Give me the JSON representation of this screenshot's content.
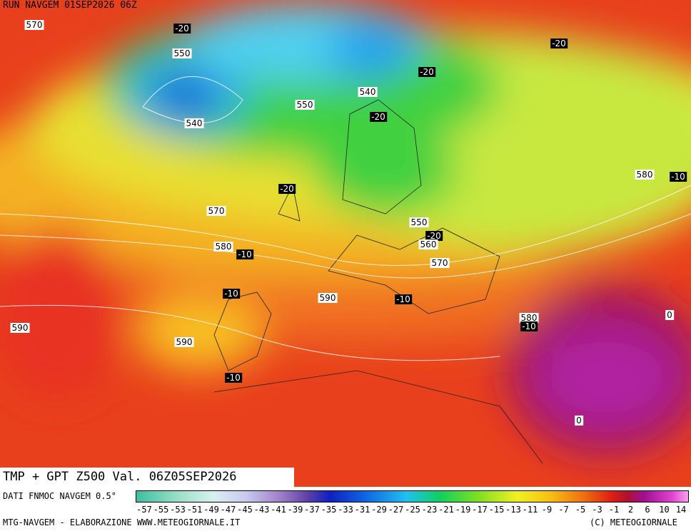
{
  "header": {
    "run": "RUN NAVGEM 01SEP2026 06Z"
  },
  "contour_labels": [
    570,
    -20,
    550,
    -20,
    -20,
    540,
    550,
    -20,
    540,
    580,
    -10,
    -20,
    570,
    550,
    -20,
    560,
    580,
    -10,
    570,
    -10,
    590,
    -10,
    0,
    580,
    -10,
    590,
    590,
    -10,
    0
  ],
  "map_title": "TMP + GPT Z500 Val. 06Z05SEP2026",
  "legend": {
    "source": "DATI FNMOC NAVGEM 0.5°",
    "labels": [
      -57,
      -55,
      -53,
      -51,
      -49,
      -47,
      -45,
      -43,
      -41,
      -39,
      -37,
      -35,
      -33,
      -31,
      -29,
      -27,
      -25,
      -23,
      -21,
      -19,
      -17,
      -15,
      -13,
      -11,
      -9,
      -7,
      -5,
      -3,
      -1,
      2,
      6,
      10,
      14
    ]
  },
  "footer": {
    "left": "MTG-NAVGEM - ELABORAZIONE WWW.METEOGIORNALE.IT",
    "right": "(C) METEOGIORNALE"
  }
}
